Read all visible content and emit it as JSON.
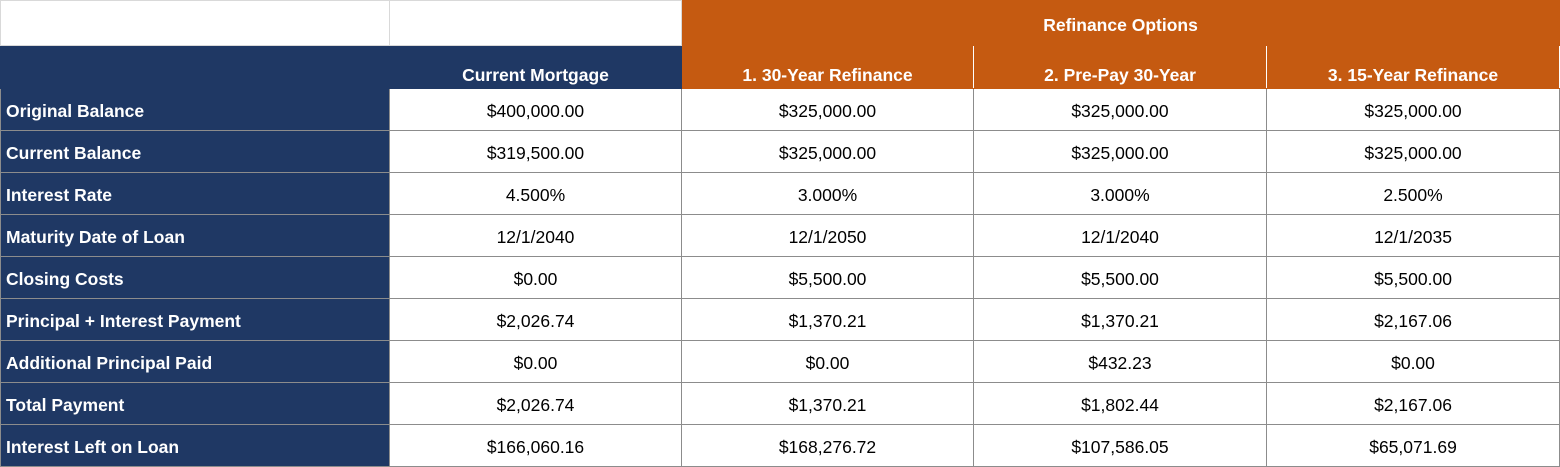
{
  "group_header": "Refinance Options",
  "columns": [
    "Current Mortgage",
    "1. 30-Year Refinance",
    "2. Pre-Pay 30-Year",
    "3. 15-Year Refinance"
  ],
  "rows": [
    {
      "label": "Original Balance",
      "values": [
        "$400,000.00",
        "$325,000.00",
        "$325,000.00",
        "$325,000.00"
      ]
    },
    {
      "label": "Current Balance",
      "values": [
        "$319,500.00",
        "$325,000.00",
        "$325,000.00",
        "$325,000.00"
      ]
    },
    {
      "label": "Interest Rate",
      "values": [
        "4.500%",
        "3.000%",
        "3.000%",
        "2.500%"
      ]
    },
    {
      "label": "Maturity Date of Loan",
      "values": [
        "12/1/2040",
        "12/1/2050",
        "12/1/2040",
        "12/1/2035"
      ]
    },
    {
      "label": "Closing Costs",
      "values": [
        "$0.00",
        "$5,500.00",
        "$5,500.00",
        "$5,500.00"
      ]
    },
    {
      "label": "Principal + Interest Payment",
      "values": [
        "$2,026.74",
        "$1,370.21",
        "$1,370.21",
        "$2,167.06"
      ]
    },
    {
      "label": "Additional Principal Paid",
      "values": [
        "$0.00",
        "$0.00",
        "$432.23",
        "$0.00"
      ]
    },
    {
      "label": "Total Payment",
      "values": [
        "$2,026.74",
        "$1,370.21",
        "$1,802.44",
        "$2,167.06"
      ]
    },
    {
      "label": "Interest Left on Loan",
      "values": [
        "$166,060.16",
        "$168,276.72",
        "$107,586.05",
        "$65,071.69"
      ]
    }
  ],
  "colors": {
    "navy": "#1f3864",
    "orange": "#c55a11"
  }
}
